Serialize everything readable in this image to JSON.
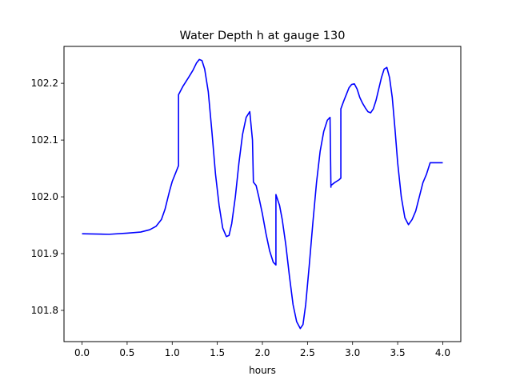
{
  "chart_data": {
    "type": "line",
    "title": "Water Depth h at gauge 130",
    "xlabel": "hours",
    "ylabel": "",
    "xlim": [
      -0.2,
      4.2
    ],
    "ylim": [
      101.745,
      102.265
    ],
    "xticks": [
      0.0,
      0.5,
      1.0,
      1.5,
      2.0,
      2.5,
      3.0,
      3.5,
      4.0
    ],
    "xtick_labels": [
      "0.0",
      "0.5",
      "1.0",
      "1.5",
      "2.0",
      "2.5",
      "3.0",
      "3.5",
      "4.0"
    ],
    "yticks": [
      101.8,
      101.9,
      102.0,
      102.1,
      102.2
    ],
    "ytick_labels": [
      "101.8",
      "101.9",
      "102.0",
      "102.1",
      "102.2"
    ],
    "grid": false,
    "line_color": "#0000ff",
    "series": [
      {
        "name": "",
        "x": [
          0.0,
          0.3,
          0.5,
          0.65,
          0.75,
          0.82,
          0.88,
          0.92,
          0.97,
          1.0,
          1.04,
          1.07,
          1.07,
          1.12,
          1.18,
          1.23,
          1.27,
          1.3,
          1.33,
          1.36,
          1.4,
          1.44,
          1.48,
          1.52,
          1.56,
          1.6,
          1.63,
          1.66,
          1.7,
          1.74,
          1.78,
          1.82,
          1.86,
          1.89,
          1.9,
          1.9,
          1.93,
          1.96,
          2.0,
          2.04,
          2.08,
          2.12,
          2.15,
          2.15,
          2.19,
          2.22,
          2.26,
          2.3,
          2.34,
          2.38,
          2.42,
          2.45,
          2.48,
          2.52,
          2.56,
          2.6,
          2.64,
          2.68,
          2.72,
          2.75,
          2.76,
          2.76,
          2.8,
          2.85,
          2.87,
          2.87,
          2.9,
          2.93,
          2.96,
          2.99,
          3.02,
          3.05,
          3.08,
          3.11,
          3.14,
          3.17,
          3.2,
          3.23,
          3.26,
          3.29,
          3.32,
          3.35,
          3.38,
          3.41,
          3.44,
          3.47,
          3.5,
          3.54,
          3.58,
          3.62,
          3.66,
          3.7,
          3.74,
          3.78,
          3.82,
          3.86,
          3.9,
          3.93,
          3.96,
          4.0
        ],
        "y": [
          101.935,
          101.934,
          101.936,
          101.938,
          101.942,
          101.948,
          101.96,
          101.978,
          102.01,
          102.027,
          102.043,
          102.055,
          102.18,
          102.195,
          102.21,
          102.223,
          102.236,
          102.242,
          102.24,
          102.225,
          102.185,
          102.115,
          102.04,
          101.985,
          101.945,
          101.93,
          101.932,
          101.953,
          102.0,
          102.06,
          102.11,
          102.14,
          102.15,
          102.1,
          102.027,
          102.026,
          102.02,
          102.0,
          101.97,
          101.935,
          101.905,
          101.885,
          101.88,
          102.004,
          101.985,
          101.96,
          101.915,
          101.86,
          101.81,
          101.78,
          101.768,
          101.775,
          101.81,
          101.88,
          101.955,
          102.025,
          102.08,
          102.115,
          102.135,
          102.14,
          102.017,
          102.02,
          102.025,
          102.03,
          102.033,
          102.155,
          102.168,
          102.18,
          102.192,
          102.198,
          102.199,
          102.19,
          102.175,
          102.165,
          102.157,
          102.15,
          102.148,
          102.155,
          102.17,
          102.19,
          102.21,
          102.225,
          102.228,
          102.21,
          102.175,
          102.12,
          102.06,
          102.0,
          101.963,
          101.951,
          101.96,
          101.975,
          102.0,
          102.025,
          102.04,
          102.06,
          102.06,
          102.06,
          102.06,
          102.06
        ]
      }
    ]
  }
}
